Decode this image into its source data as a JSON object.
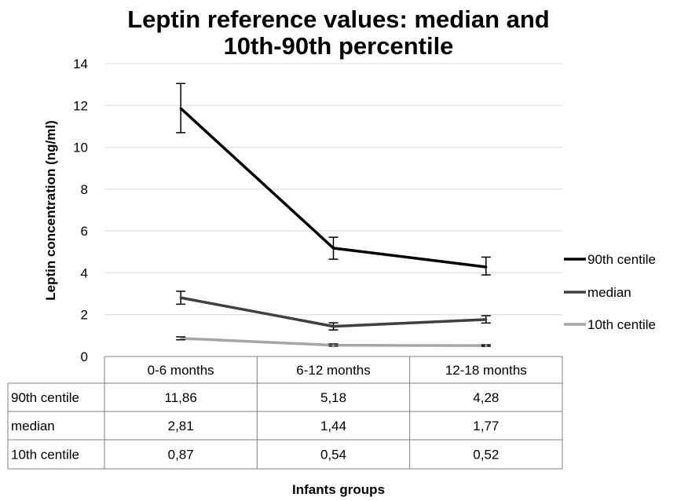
{
  "chart_data": {
    "type": "line",
    "title_line1": "Leptin reference values: median and",
    "title_line2": "10th-90th percentile",
    "ylabel": "Leptin concentration (ng/ml)",
    "xlabel": "Infants groups",
    "ylim": [
      0,
      14
    ],
    "yticks": [
      "0",
      "2",
      "4",
      "6",
      "8",
      "10",
      "12",
      "14"
    ],
    "grid": true,
    "legend_position": "right",
    "categories": [
      "0-6 months",
      "6-12 months",
      "12-18 months"
    ],
    "series": [
      {
        "name": "90th centile",
        "values": [
          11.86,
          5.18,
          4.28
        ],
        "labels": [
          "11,86",
          "5,18",
          "4,28"
        ],
        "err_low": [
          10.7,
          4.65,
          3.9
        ],
        "err_high": [
          13.05,
          5.7,
          4.75
        ],
        "color": "#000000"
      },
      {
        "name": "median",
        "values": [
          2.81,
          1.44,
          1.77
        ],
        "labels": [
          "2,81",
          "1,44",
          "1,77"
        ],
        "err_low": [
          2.5,
          1.27,
          1.6
        ],
        "err_high": [
          3.12,
          1.61,
          1.95
        ],
        "color": "#404040"
      },
      {
        "name": "10th centile",
        "values": [
          0.87,
          0.54,
          0.52
        ],
        "labels": [
          "0,87",
          "0,54",
          "0,52"
        ],
        "err_low": [
          0.8,
          0.5,
          0.49
        ],
        "err_high": [
          0.94,
          0.6,
          0.56
        ],
        "color": "#a6a6a6"
      }
    ]
  }
}
